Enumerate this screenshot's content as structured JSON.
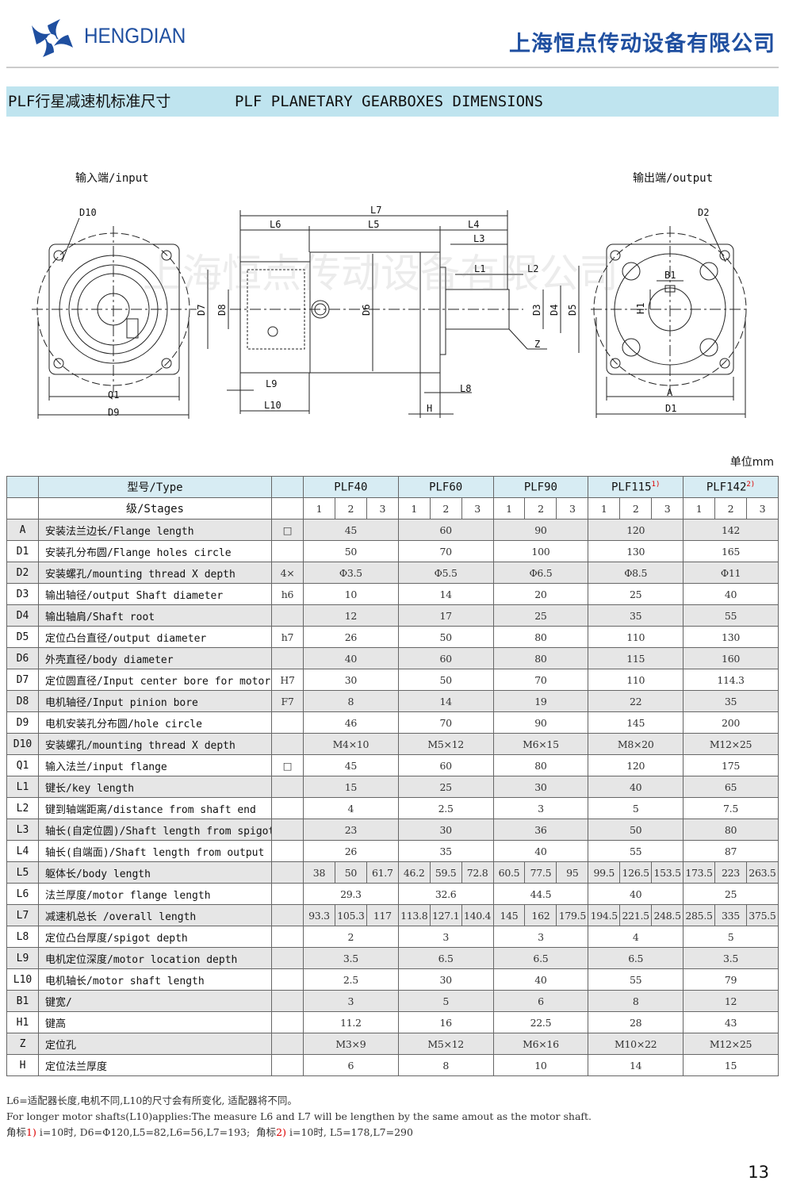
{
  "header": {
    "brand": "HENGDIAN",
    "company": "上海恒点传动设备有限公司",
    "brand_color": "#1f4fa0"
  },
  "banner": {
    "title_cn": "PLF行星减速机标准尺寸",
    "title_en": "PLF PLANETARY GEARBOXES DIMENSIONS",
    "bg_color": "#bfe4ef"
  },
  "diagram": {
    "input_label": "输入端/input",
    "output_label": "输出端/output",
    "watermark": "上海恒点传动设备有限公司",
    "labels": {
      "D10": "D10",
      "Q1": "Q1",
      "D9": "D9",
      "L7": "L7",
      "L6": "L6",
      "L5": "L5",
      "L4": "L4",
      "L3": "L3",
      "L1": "L1",
      "L2": "L2",
      "D7": "D7",
      "D8": "D8",
      "D6": "D6",
      "D3": "D3",
      "D4": "D4",
      "D5": "D5",
      "Z": "Z",
      "L9": "L9",
      "L10": "L10",
      "L8": "L8",
      "H": "H",
      "D2": "D2",
      "B1": "B1",
      "H1": "H1",
      "A": "A",
      "D1": "D1"
    }
  },
  "unit": "单位mm",
  "table": {
    "type_label": "型号/Type",
    "stages_label": "级/Stages",
    "models": [
      {
        "name": "PLF40",
        "mark": ""
      },
      {
        "name": "PLF60",
        "mark": ""
      },
      {
        "name": "PLF90",
        "mark": ""
      },
      {
        "name": "PLF115",
        "mark": "1)"
      },
      {
        "name": "PLF142",
        "mark": "2)"
      }
    ],
    "stages": [
      "1",
      "2",
      "3"
    ],
    "rows": [
      {
        "code": "A",
        "desc": "安装法兰边长/Flange length",
        "unit": "□",
        "values": [
          "45",
          "60",
          "90",
          "120",
          "142"
        ]
      },
      {
        "code": "D1",
        "desc": "安装孔分布圆/Flange holes circle",
        "unit": "",
        "values": [
          "50",
          "70",
          "100",
          "130",
          "165"
        ]
      },
      {
        "code": "D2",
        "desc": "安装螺孔/mounting thread X depth",
        "unit": "4×",
        "values": [
          "Φ3.5",
          "Φ5.5",
          "Φ6.5",
          "Φ8.5",
          "Φ11"
        ]
      },
      {
        "code": "D3",
        "desc": "输出轴径/output Shaft diameter",
        "unit": "h6",
        "values": [
          "10",
          "14",
          "20",
          "25",
          "40"
        ]
      },
      {
        "code": "D4",
        "desc": "输出轴肩/Shaft root",
        "unit": "",
        "values": [
          "12",
          "17",
          "25",
          "35",
          "55"
        ]
      },
      {
        "code": "D5",
        "desc": "定位凸台直径/output diameter",
        "unit": "h7",
        "values": [
          "26",
          "50",
          "80",
          "110",
          "130"
        ]
      },
      {
        "code": "D6",
        "desc": "外壳直径/body diameter",
        "unit": "",
        "values": [
          "40",
          "60",
          "80",
          "115",
          "160"
        ]
      },
      {
        "code": "D7",
        "desc": "定位圆直径/Input center bore for motor",
        "unit": "H7",
        "values": [
          "30",
          "50",
          "70",
          "110",
          "114.3"
        ]
      },
      {
        "code": "D8",
        "desc": "电机轴径/Input pinion bore",
        "unit": "F7",
        "values": [
          "8",
          "14",
          "19",
          "22",
          "35"
        ]
      },
      {
        "code": "D9",
        "desc": "电机安装孔分布圆/hole circle",
        "unit": "",
        "values": [
          "46",
          "70",
          "90",
          "145",
          "200"
        ]
      },
      {
        "code": "D10",
        "desc": "安装螺孔/mounting thread X depth",
        "unit": "",
        "values": [
          "M4×10",
          "M5×12",
          "M6×15",
          "M8×20",
          "M12×25"
        ]
      },
      {
        "code": "Q1",
        "desc": "输入法兰/input flange",
        "unit": "□",
        "values": [
          "45",
          "60",
          "80",
          "120",
          "175"
        ]
      },
      {
        "code": "L1",
        "desc": "键长/key length",
        "unit": "",
        "values": [
          "15",
          "25",
          "30",
          "40",
          "65"
        ]
      },
      {
        "code": "L2",
        "desc": "键到轴端距离/distance from shaft end",
        "unit": "",
        "values": [
          "4",
          "2.5",
          "3",
          "5",
          "7.5"
        ]
      },
      {
        "code": "L3",
        "desc": "轴长(自定位圆)/Shaft length from spigot",
        "unit": "",
        "values": [
          "23",
          "30",
          "36",
          "50",
          "80"
        ]
      },
      {
        "code": "L4",
        "desc": "轴长(自端面)/Shaft length from output",
        "unit": "",
        "values": [
          "26",
          "35",
          "40",
          "55",
          "87"
        ]
      },
      {
        "code": "L5",
        "desc": "躯体长/body length",
        "unit": "",
        "values": [
          "38",
          "50",
          "61.7",
          "46.2",
          "59.5",
          "72.8",
          "60.5",
          "77.5",
          "95",
          "99.5",
          "126.5",
          "153.5",
          "173.5",
          "223",
          "263.5"
        ]
      },
      {
        "code": "L6",
        "desc": "法兰厚度/motor flange length",
        "unit": "",
        "values": [
          "29.3",
          "32.6",
          "44.5",
          "40",
          "25"
        ]
      },
      {
        "code": "L7",
        "desc": "减速机总长 /overall length",
        "unit": "",
        "values": [
          "93.3",
          "105.3",
          "117",
          "113.8",
          "127.1",
          "140.4",
          "145",
          "162",
          "179.5",
          "194.5",
          "221.5",
          "248.5",
          "285.5",
          "335",
          "375.5"
        ]
      },
      {
        "code": "L8",
        "desc": "定位凸台厚度/spigot depth",
        "unit": "",
        "values": [
          "2",
          "3",
          "3",
          "4",
          "5"
        ]
      },
      {
        "code": "L9",
        "desc": "电机定位深度/motor location depth",
        "unit": "",
        "values": [
          "3.5",
          "6.5",
          "6.5",
          "6.5",
          "3.5"
        ]
      },
      {
        "code": "L10",
        "desc": "电机轴长/motor shaft length",
        "unit": "",
        "values": [
          "2.5",
          "30",
          "40",
          "55",
          "79"
        ]
      },
      {
        "code": "B1",
        "desc": "键宽/",
        "unit": "",
        "values": [
          "3",
          "5",
          "6",
          "8",
          "12"
        ]
      },
      {
        "code": "H1",
        "desc": "键高",
        "unit": "",
        "values": [
          "11.2",
          "16",
          "22.5",
          "28",
          "43"
        ]
      },
      {
        "code": "Z",
        "desc": "定位孔",
        "unit": "",
        "values": [
          "M3×9",
          "M5×12",
          "M6×16",
          "M10×22",
          "M12×25"
        ]
      },
      {
        "code": "H",
        "desc": "定位法兰厚度",
        "unit": "",
        "values": [
          "6",
          "8",
          "10",
          "14",
          "15"
        ]
      }
    ]
  },
  "notes": {
    "line1": "L6=适配器长度,电机不同,L10的尺寸会有所变化, 适配器将不同。",
    "line2": "For longer motor shafts(L10)applies:The measure L6 and L7 will be lengthen by the same amout as the motor shaft.",
    "n1_prefix": "角标",
    "n1_mark": "1)",
    "n1_text": " i=10时, D6=Φ120,L5=82,L6=56,L7=193;  ",
    "n2_prefix": "角标",
    "n2_mark": "2)",
    "n2_text": " i=10时, L5=178,L7=290"
  },
  "page_number": "13"
}
